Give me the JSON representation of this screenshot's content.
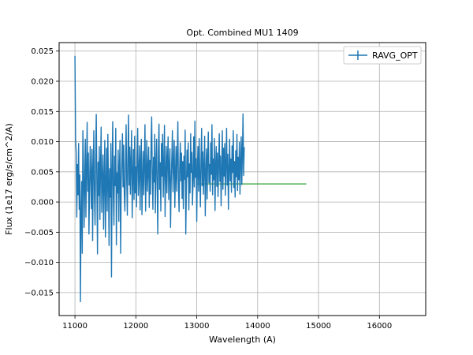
{
  "chart_data": {
    "type": "line",
    "title": "Opt. Combined MU1 1409",
    "xlabel": "Wavelength (A)",
    "ylabel": "Flux (1e17 erg/s/cm^2/A)",
    "xlim": [
      10740,
      16760
    ],
    "ylim": [
      -0.0188,
      0.0264
    ],
    "xticks": [
      11000,
      12000,
      13000,
      14000,
      15000,
      16000
    ],
    "xtick_labels": [
      "11000",
      "12000",
      "13000",
      "14000",
      "15000",
      "16000"
    ],
    "yticks": [
      -0.015,
      -0.01,
      -0.005,
      0.0,
      0.005,
      0.01,
      0.015,
      0.02,
      0.025
    ],
    "ytick_labels": [
      "−0.015",
      "−0.010",
      "−0.005",
      "0.000",
      "0.005",
      "0.010",
      "0.015",
      "0.020",
      "0.025"
    ],
    "grid": true,
    "legend_position": "top-right",
    "colors": {
      "spectrum": "#1f77b4",
      "fit": "#2ca02c",
      "grid": "#b0b0b0"
    },
    "series": [
      {
        "name": "RAVG_OPT",
        "x_start": 11000,
        "x_step": 10,
        "values": [
          0.0242,
          0.0105,
          0.0083,
          -0.0025,
          0.0062,
          0.0012,
          0.0097,
          -0.0012,
          0.0045,
          -0.0165,
          -0.0018,
          0.0034,
          -0.0085,
          0.0118,
          0.0063,
          -0.0042,
          0.0027,
          0.0104,
          -0.0025,
          0.0053,
          0.0132,
          0.0018,
          0.0081,
          -0.0053,
          0.0024,
          0.0092,
          0.0041,
          -0.0011,
          0.0087,
          -0.0064,
          0.0055,
          0.0118,
          0.0009,
          -0.0038,
          0.0072,
          0.0145,
          0.0031,
          -0.0086,
          0.0066,
          0.0011,
          0.0092,
          -0.0029,
          0.0062,
          0.0124,
          -0.0017,
          0.0033,
          0.0078,
          -0.0045,
          0.0041,
          0.0102,
          -0.0058,
          0.0029,
          0.0089,
          -0.0015,
          0.0112,
          0.0035,
          -0.0072,
          0.0055,
          0.0008,
          0.0097,
          -0.0124,
          0.0048,
          0.0133,
          0.0012,
          -0.0038,
          0.0076,
          0.0027,
          0.0122,
          -0.0071,
          0.0048,
          0.0015,
          0.0086,
          -0.0032,
          0.0058,
          0.0102,
          -0.0085,
          0.0033,
          0.0068,
          0.0113,
          0.0025,
          0.0094,
          0.0012,
          -0.0015,
          0.0061,
          0.0128,
          0.0037,
          -0.0022,
          0.0078,
          0.0144,
          0.0028,
          0.0091,
          0.0013,
          0.0068,
          0.0118,
          -0.0026,
          0.0042,
          0.0087,
          0.0004,
          0.0109,
          0.0015,
          0.0058,
          -0.0008,
          0.0079,
          0.0122,
          0.0011,
          0.0046,
          0.0093,
          -0.0013,
          0.0066,
          0.0104,
          -0.0021,
          0.0038,
          0.0084,
          0.0012,
          0.0067,
          0.0128,
          -0.0015,
          0.0045,
          0.0102,
          0.0018,
          0.0053,
          0.0091,
          -0.0009,
          0.0069,
          0.0013,
          0.0098,
          0.0141,
          0.0042,
          -0.0012,
          0.0074,
          0.0033,
          0.0112,
          -0.0018,
          0.0061,
          0.0104,
          0.0024,
          -0.0053,
          0.0082,
          0.0129,
          0.0021,
          0.0065,
          -0.0015,
          0.0097,
          0.0043,
          0.0112,
          0.0008,
          0.0058,
          0.0127,
          -0.0024,
          0.0042,
          0.0092,
          0.0015,
          0.0073,
          0.0108,
          0.0004,
          0.0059,
          0.0088,
          -0.0042,
          0.0031,
          0.0071,
          0.0118,
          0.0017,
          0.0064,
          0.0102,
          -0.0009,
          0.0045,
          0.0092,
          0.0018,
          0.0077,
          0.0133,
          0.0022,
          -0.0016,
          0.0059,
          0.0098,
          0.0035,
          0.0081,
          0.0006,
          0.0067,
          -0.0011,
          0.0076,
          0.0038,
          0.0119,
          -0.0053,
          0.0021,
          0.0086,
          0.0042,
          0.0098,
          -0.0013,
          0.0063,
          0.0015,
          0.0113,
          0.0049,
          0.0082,
          -0.0005,
          0.0038,
          0.0108,
          0.0025,
          0.0134,
          0.0041,
          0.0072,
          -0.0032,
          0.0055,
          0.0092,
          0.0018,
          0.0105,
          0.0047,
          -0.0008,
          0.0069,
          0.0122,
          0.0027,
          0.0083,
          0.0013,
          0.0058,
          0.0109,
          -0.0023,
          0.0044,
          0.0088,
          0.0005,
          0.0074,
          0.0116,
          0.0032,
          0.0062,
          0.0018,
          0.0098,
          0.0046,
          0.0128,
          0.0012,
          0.0071,
          0.0037,
          0.0105,
          -0.0014,
          0.0059,
          0.0092,
          0.0026,
          0.0081,
          0.0009,
          0.0066,
          0.0113,
          0.0034,
          0.0076,
          -0.0006,
          0.0052,
          0.0118,
          0.0021,
          0.0089,
          0.0043,
          0.0097,
          0.0011,
          0.0063,
          0.0122,
          0.0028,
          0.0079,
          -0.0012,
          0.0056,
          0.0104,
          0.0035,
          0.0071,
          0.0016,
          0.0093,
          0.0049,
          0.0118,
          0.0024,
          0.0067,
          0.0008,
          0.0085,
          0.0042,
          0.0112,
          0.0019,
          0.0074,
          0.0037,
          0.0099,
          0.0013,
          0.0065,
          0.0108,
          0.0029,
          0.0083,
          0.0146,
          0.0044,
          0.0091
        ],
        "yerr_line": true
      },
      {
        "x": [
          13000,
          14800
        ],
        "values": [
          0.003,
          0.003
        ]
      }
    ]
  }
}
